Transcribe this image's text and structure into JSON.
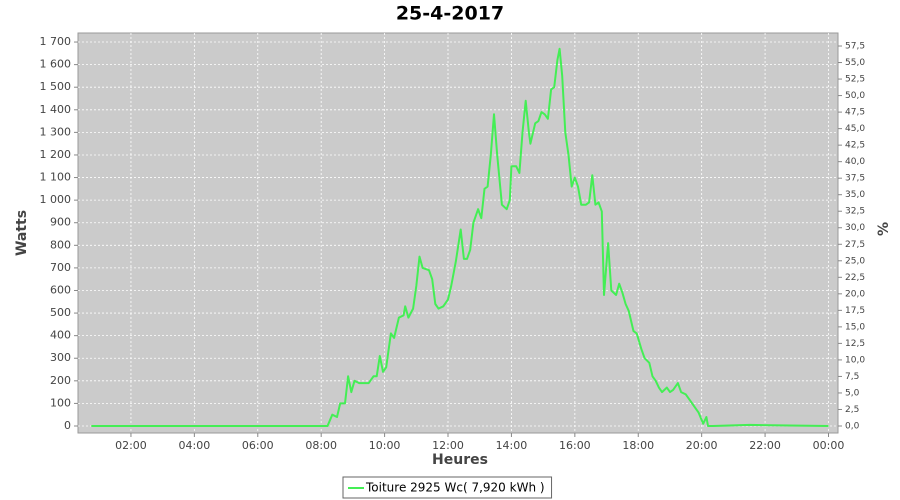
{
  "chart_data": {
    "type": "line",
    "title": "25-4-2017",
    "xlabel": "Heures",
    "ylabel": "Watts",
    "y2label": "%",
    "legend": "bottom",
    "grid": true,
    "xlim": [
      0.33,
      24.3
    ],
    "xticks": [
      {
        "value": 2,
        "label": "02:00"
      },
      {
        "value": 4,
        "label": "04:00"
      },
      {
        "value": 6,
        "label": "06:00"
      },
      {
        "value": 8,
        "label": "08:00"
      },
      {
        "value": 10,
        "label": "10:00"
      },
      {
        "value": 12,
        "label": "12:00"
      },
      {
        "value": 14,
        "label": "14:00"
      },
      {
        "value": 16,
        "label": "16:00"
      },
      {
        "value": 18,
        "label": "18:00"
      },
      {
        "value": 20,
        "label": "20:00"
      },
      {
        "value": 22,
        "label": "22:00"
      },
      {
        "value": 24,
        "label": "00:00"
      }
    ],
    "ylim": [
      -31,
      1740
    ],
    "yticks": [
      0,
      100,
      200,
      300,
      400,
      500,
      600,
      700,
      800,
      900,
      {
        "value": 1000,
        "label": "1 000"
      },
      {
        "value": 1100,
        "label": "1 100"
      },
      {
        "value": 1200,
        "label": "1 200"
      },
      {
        "value": 1300,
        "label": "1 300"
      },
      {
        "value": 1400,
        "label": "1 400"
      },
      {
        "value": 1500,
        "label": "1 500"
      },
      {
        "value": 1600,
        "label": "1 600"
      },
      {
        "value": 1700,
        "label": "1 700"
      }
    ],
    "y2lim": [
      -1.06,
      59.47
    ],
    "y2ticks": [
      {
        "value": 0,
        "label": "0,0"
      },
      {
        "value": 2.5,
        "label": "2,5"
      },
      {
        "value": 5,
        "label": "5,0"
      },
      {
        "value": 7.5,
        "label": "7,5"
      },
      {
        "value": 10,
        "label": "10,0"
      },
      {
        "value": 12.5,
        "label": "12,5"
      },
      {
        "value": 15,
        "label": "15,0"
      },
      {
        "value": 17.5,
        "label": "17,5"
      },
      {
        "value": 20,
        "label": "20,0"
      },
      {
        "value": 22.5,
        "label": "22,5"
      },
      {
        "value": 25,
        "label": "25,0"
      },
      {
        "value": 27.5,
        "label": "27,5"
      },
      {
        "value": 30,
        "label": "30,0"
      },
      {
        "value": 32.5,
        "label": "32,5"
      },
      {
        "value": 35,
        "label": "35,0"
      },
      {
        "value": 37.5,
        "label": "37,5"
      },
      {
        "value": 40,
        "label": "40,0"
      },
      {
        "value": 42.5,
        "label": "42,5"
      },
      {
        "value": 45,
        "label": "45,0"
      },
      {
        "value": 47.5,
        "label": "47,5"
      },
      {
        "value": 50,
        "label": "50,0"
      },
      {
        "value": 52.5,
        "label": "52,5"
      },
      {
        "value": 55,
        "label": "55,0"
      },
      {
        "value": 57.5,
        "label": "57,5"
      }
    ],
    "x": [
      0.75,
      8.0,
      8.2,
      8.35,
      8.5,
      8.6,
      8.75,
      8.85,
      8.95,
      9.05,
      9.2,
      9.5,
      9.65,
      9.75,
      9.85,
      9.95,
      10.05,
      10.2,
      10.3,
      10.45,
      10.6,
      10.65,
      10.75,
      10.9,
      11.0,
      11.1,
      11.2,
      11.4,
      11.5,
      11.6,
      11.7,
      11.85,
      12.0,
      12.1,
      12.25,
      12.4,
      12.5,
      12.6,
      12.7,
      12.8,
      12.95,
      13.05,
      13.15,
      13.25,
      13.35,
      13.45,
      13.55,
      13.7,
      13.85,
      13.95,
      14.0,
      14.15,
      14.25,
      14.35,
      14.45,
      14.55,
      14.6,
      14.75,
      14.85,
      14.95,
      15.05,
      15.15,
      15.25,
      15.35,
      15.45,
      15.52,
      15.6,
      15.7,
      15.8,
      15.9,
      16.0,
      16.1,
      16.2,
      16.35,
      16.45,
      16.55,
      16.65,
      16.75,
      16.85,
      16.92,
      17.0,
      17.05,
      17.15,
      17.3,
      17.4,
      17.5,
      17.6,
      17.7,
      17.85,
      17.95,
      18.1,
      18.2,
      18.35,
      18.45,
      18.55,
      18.65,
      18.75,
      18.9,
      19.0,
      19.1,
      19.25,
      19.35,
      19.5,
      19.65,
      19.8,
      19.9,
      20.05,
      20.15,
      20.2,
      20.35,
      21.5,
      24.0
    ],
    "series": [
      {
        "name": "Toiture 2925 Wc( 7,920 kWh )",
        "color": "#44ee55",
        "values": [
          0,
          0,
          0,
          50,
          40,
          100,
          100,
          220,
          150,
          200,
          190,
          190,
          220,
          220,
          310,
          240,
          260,
          410,
          390,
          480,
          490,
          530,
          480,
          520,
          620,
          750,
          700,
          690,
          650,
          540,
          520,
          530,
          560,
          620,
          730,
          870,
          740,
          740,
          780,
          900,
          960,
          920,
          1050,
          1060,
          1200,
          1380,
          1200,
          980,
          960,
          1000,
          1150,
          1150,
          1120,
          1300,
          1440,
          1300,
          1250,
          1340,
          1350,
          1390,
          1380,
          1360,
          1490,
          1500,
          1620,
          1670,
          1550,
          1300,
          1200,
          1060,
          1100,
          1060,
          980,
          980,
          990,
          1110,
          980,
          990,
          950,
          580,
          720,
          810,
          600,
          580,
          630,
          590,
          540,
          510,
          420,
          410,
          340,
          300,
          280,
          220,
          200,
          170,
          150,
          170,
          150,
          160,
          190,
          150,
          140,
          110,
          80,
          60,
          10,
          40,
          0,
          0,
          5,
          0
        ]
      }
    ]
  }
}
